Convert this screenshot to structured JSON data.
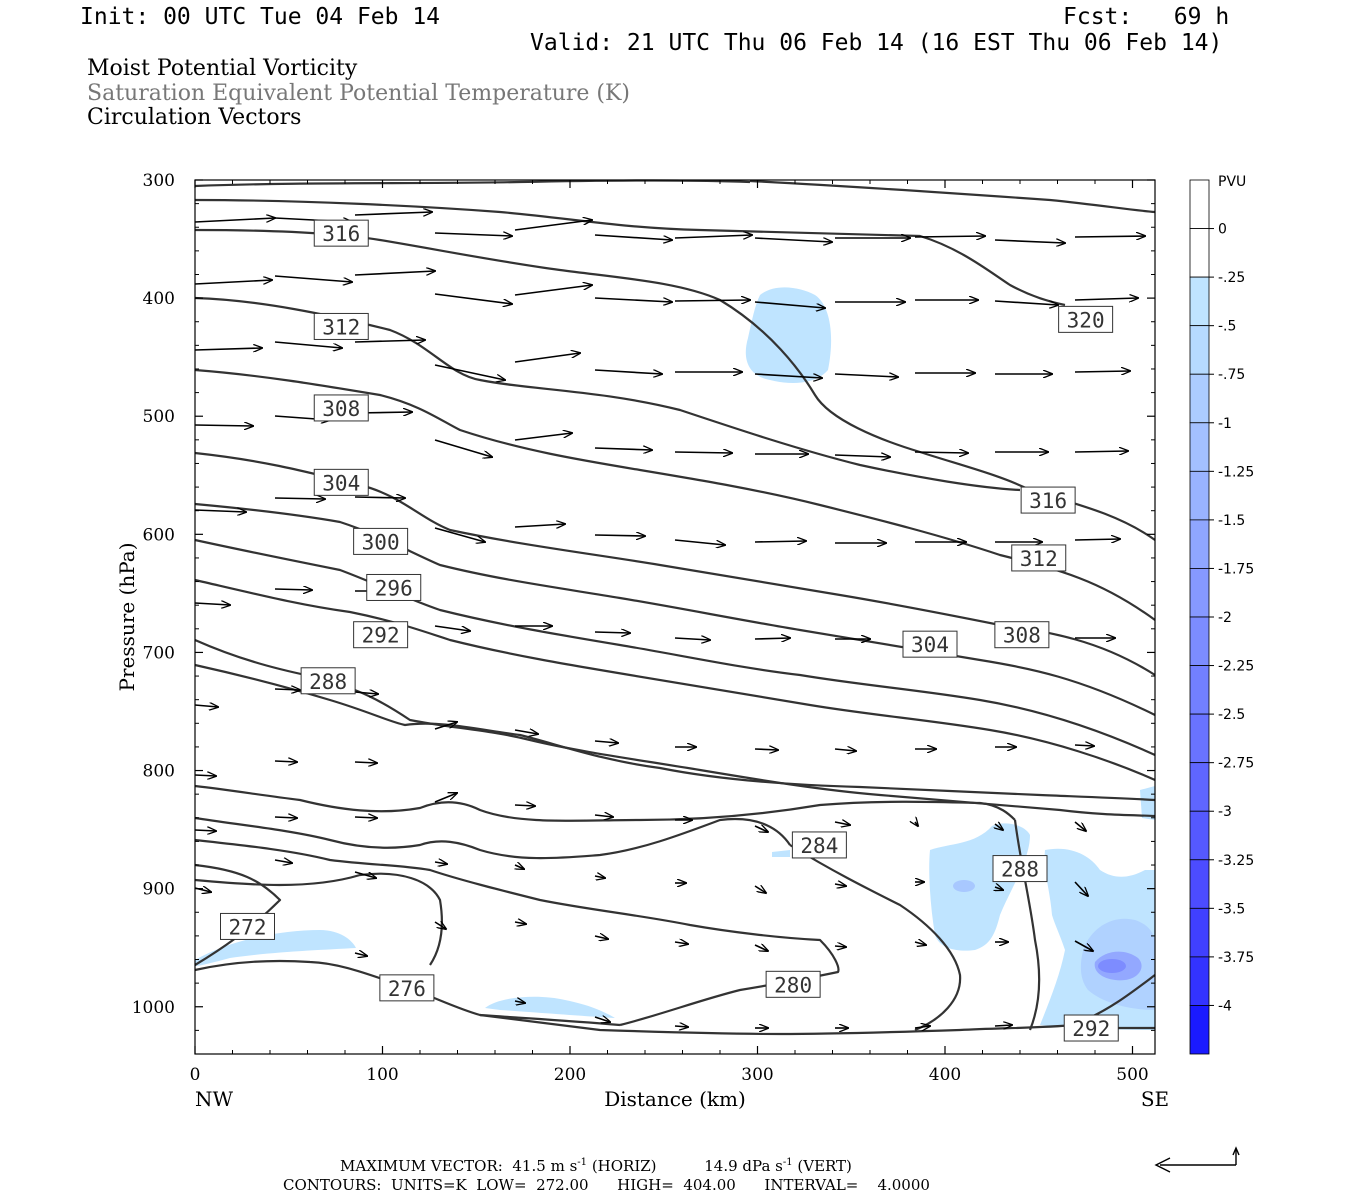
{
  "header": {
    "init": "Init: 00 UTC Tue 04 Feb 14",
    "fcst": "Fcst:   69 h",
    "valid": "Valid: 21 UTC Thu 06 Feb 14 (16 EST Thu 06 Feb 14)",
    "fields": [
      "Moist Potential Vorticity",
      "Saturation Equivalent Potential Temperature (K)",
      "Circulation Vectors"
    ]
  },
  "chart_data": {
    "type": "cross-section",
    "x_axis": {
      "label": "Distance (km)",
      "ticks": [
        0,
        100,
        200,
        300,
        400,
        500
      ],
      "range": [
        0,
        512
      ],
      "left_end_label": "NW",
      "right_end_label": "SE"
    },
    "y_axis": {
      "label": "Pressure (hPa)",
      "ticks": [
        300,
        400,
        500,
        600,
        700,
        800,
        900,
        1000
      ],
      "range": [
        300,
        1040
      ],
      "inverted": true
    },
    "contour_labels": [
      {
        "text": "316",
        "x": 78,
        "p": 345
      },
      {
        "text": "312",
        "x": 78,
        "p": 424
      },
      {
        "text": "308",
        "x": 78,
        "p": 493
      },
      {
        "text": "304",
        "x": 78,
        "p": 556
      },
      {
        "text": "300",
        "x": 99,
        "p": 606
      },
      {
        "text": "296",
        "x": 106,
        "p": 645
      },
      {
        "text": "292",
        "x": 99,
        "p": 685
      },
      {
        "text": "288",
        "x": 71,
        "p": 724
      },
      {
        "text": "272",
        "x": 28,
        "p": 932
      },
      {
        "text": "276",
        "x": 113,
        "p": 984
      },
      {
        "text": "280",
        "x": 319,
        "p": 981
      },
      {
        "text": "284",
        "x": 333,
        "p": 863
      },
      {
        "text": "288",
        "x": 440,
        "p": 883
      },
      {
        "text": "292",
        "x": 478,
        "p": 1018
      },
      {
        "text": "304",
        "x": 392,
        "p": 693
      },
      {
        "text": "308",
        "x": 441,
        "p": 685
      },
      {
        "text": "312",
        "x": 450,
        "p": 620
      },
      {
        "text": "316",
        "x": 455,
        "p": 571
      },
      {
        "text": "320",
        "x": 475,
        "p": 418
      }
    ],
    "colorbar": {
      "unit": "PVU",
      "labels": [
        "0",
        "-.25",
        "-.5",
        "-.75",
        "-1",
        "-1.25",
        "-1.5",
        "-1.75",
        "-2",
        "-2.25",
        "-2.5",
        "-2.75",
        "-3",
        "-3.25",
        "-3.5",
        "-3.75",
        "-4"
      ],
      "colors": [
        "#ffffff",
        "#bfe4ff",
        "#b6daff",
        "#acccff",
        "#a3c0ff",
        "#99b3ff",
        "#8fa6ff",
        "#8699ff",
        "#7c8cff",
        "#7280ff",
        "#6973ff",
        "#5f66ff",
        "#5559ff",
        "#4c4cff",
        "#4040ff",
        "#3333ff",
        "#1a1aff",
        "#0000ff"
      ]
    }
  },
  "footer": {
    "max_vector_label": "MAXIMUM VECTOR:",
    "horiz_value": "41.5",
    "horiz_unit": "m s",
    "horiz_tag": "(HORIZ)",
    "vert_value": "14.9",
    "vert_unit": "dPa s",
    "vert_tag": "(VERT)",
    "exp": "-1",
    "contours": "CONTOURS:  UNITS=K  LOW=  272.00      HIGH=  404.00      INTERVAL=    4.0000"
  }
}
